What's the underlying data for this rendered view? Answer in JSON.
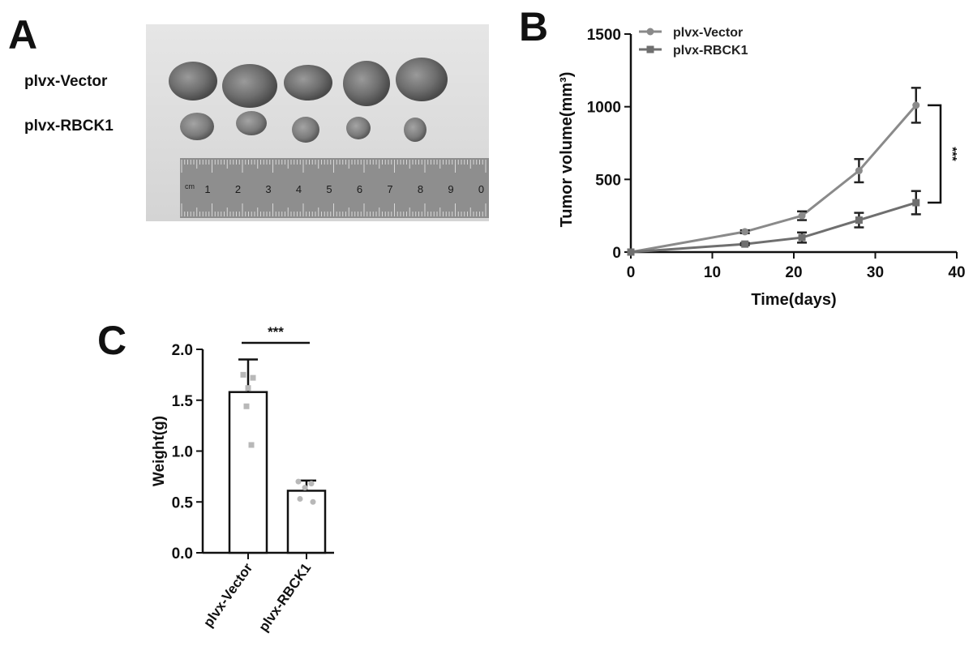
{
  "panels": {
    "a": {
      "letter": "A"
    },
    "b": {
      "letter": "B"
    },
    "c": {
      "letter": "C"
    }
  },
  "photo": {
    "row_labels": [
      "plvx-Vector",
      "plvx-RBCK1"
    ],
    "ruler_numbers": [
      "1",
      "2",
      "3",
      "4",
      "5",
      "6",
      "7",
      "8",
      "9",
      "0"
    ],
    "ruler_unit": "cm"
  },
  "chart_data": [
    {
      "type": "line",
      "panel": "B",
      "xlabel": "Time(days)",
      "ylabel": "Tumor volume(mm³)",
      "xlim": [
        0,
        40
      ],
      "ylim": [
        0,
        1500
      ],
      "xticks": [
        0,
        10,
        20,
        30,
        40
      ],
      "yticks": [
        0,
        500,
        1000,
        1500
      ],
      "legend_position": "top-left",
      "series": [
        {
          "name": "plvx-Vector",
          "marker": "circle",
          "color": "#8a8a8a",
          "x": [
            0,
            14,
            21,
            28,
            35
          ],
          "y": [
            0,
            140,
            250,
            560,
            1010
          ],
          "err": [
            0,
            10,
            30,
            80,
            120
          ]
        },
        {
          "name": "plvx-RBCK1",
          "marker": "square",
          "color": "#6f6f6f",
          "x": [
            0,
            14,
            21,
            28,
            35
          ],
          "y": [
            0,
            55,
            100,
            220,
            340
          ],
          "err": [
            0,
            8,
            35,
            50,
            80
          ]
        }
      ],
      "significance": "***"
    },
    {
      "type": "bar",
      "panel": "C",
      "categories": [
        "plvx-Vector",
        "plvx-RBCK1"
      ],
      "values": [
        1.58,
        0.61
      ],
      "err": [
        0.32,
        0.1
      ],
      "points": [
        [
          1.75,
          1.72,
          1.62,
          1.44,
          1.06
        ],
        [
          0.7,
          0.68,
          0.64,
          0.53,
          0.5
        ]
      ],
      "ylabel": "Weight(g)",
      "ylim": [
        0,
        2.0
      ],
      "yticks": [
        "0.0",
        "0.5",
        "1.0",
        "1.5",
        "2.0"
      ],
      "significance": "***",
      "colors": {
        "bar_fill": "#ffffff",
        "bar_stroke": "#111111",
        "points": "#b8b8b8"
      }
    }
  ]
}
